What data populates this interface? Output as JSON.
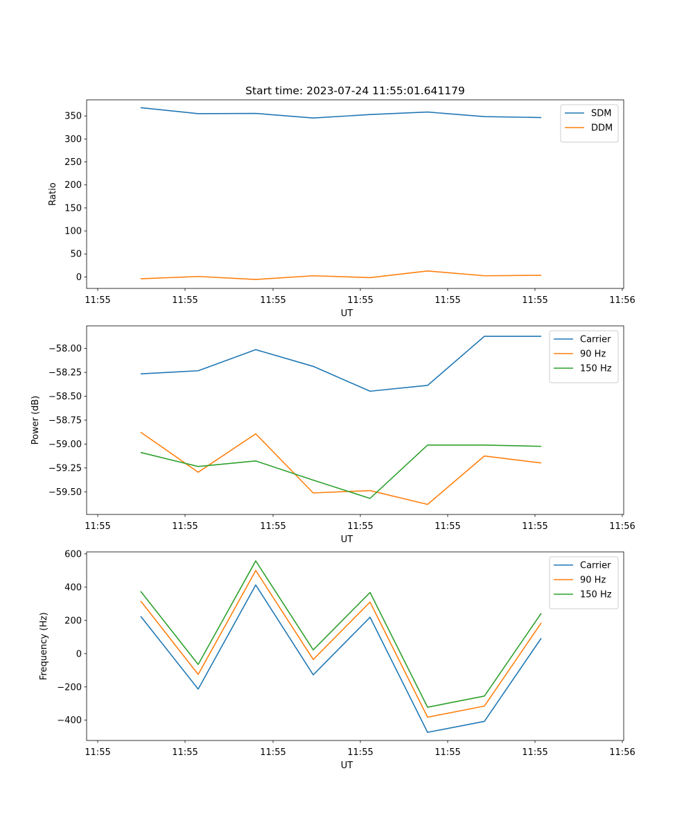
{
  "chart_data": [
    {
      "type": "line",
      "title": "Start time: 2023-07-24 11:55:01.641179",
      "xlabel": "UT",
      "ylabel": "Ratio",
      "x_tick_labels": [
        "11:55",
        "11:55",
        "11:55",
        "11:55",
        "11:55",
        "11:55",
        "11:55",
        "11:56"
      ],
      "y_ticks": [
        0,
        50,
        100,
        150,
        200,
        250,
        300,
        350
      ],
      "y_tick_labels": [
        "0",
        "50",
        "100",
        "150",
        "200",
        "250",
        "300",
        "350"
      ],
      "ylim": [
        -25,
        385
      ],
      "legend_position": "top-right",
      "series": [
        {
          "name": "SDM",
          "color": "#1f77b4",
          "values": [
            368,
            355,
            355.5,
            345.5,
            353,
            358.5,
            348.5,
            346.5
          ]
        },
        {
          "name": "DDM",
          "color": "#ff7f0e",
          "values": [
            -4,
            1,
            -5.5,
            2.5,
            -1.5,
            13,
            2.5,
            3.5
          ]
        }
      ]
    },
    {
      "type": "line",
      "title": "",
      "xlabel": "UT",
      "ylabel": "Power (dB)",
      "x_tick_labels": [
        "11:55",
        "11:55",
        "11:55",
        "11:55",
        "11:55",
        "11:55",
        "11:55",
        "11:56"
      ],
      "y_ticks": [
        -59.5,
        -59.25,
        -59.0,
        -58.75,
        -58.5,
        -58.25,
        -58.0
      ],
      "y_tick_labels": [
        "−59.50",
        "−59.25",
        "−59.00",
        "−58.75",
        "−58.50",
        "−58.25",
        "−58.00"
      ],
      "ylim": [
        -59.737,
        -57.763
      ],
      "legend_position": "top-right",
      "series": [
        {
          "name": "Carrier",
          "color": "#1f77b4",
          "values": [
            -58.265,
            -58.233,
            -58.012,
            -58.187,
            -58.447,
            -58.386,
            -57.872,
            -57.872
          ]
        },
        {
          "name": "90 Hz",
          "color": "#ff7f0e",
          "values": [
            -58.876,
            -59.295,
            -58.893,
            -59.512,
            -59.487,
            -59.632,
            -59.125,
            -59.198
          ]
        },
        {
          "name": "150 Hz",
          "color": "#2ca02c",
          "values": [
            -59.088,
            -59.235,
            -59.177,
            -59.378,
            -59.569,
            -59.011,
            -59.011,
            -59.024
          ]
        }
      ]
    },
    {
      "type": "line",
      "title": "",
      "xlabel": "UT",
      "ylabel": "Frequency (Hz)",
      "x_tick_labels": [
        "11:55",
        "11:55",
        "11:55",
        "11:55",
        "11:55",
        "11:55",
        "11:55",
        "11:56"
      ],
      "y_ticks": [
        -400,
        -200,
        0,
        200,
        400,
        600
      ],
      "y_tick_labels": [
        "−400",
        "−200",
        "0",
        "200",
        "400",
        "600"
      ],
      "ylim": [
        -522,
        612
      ],
      "legend_position": "top-right",
      "series": [
        {
          "name": "Carrier",
          "color": "#1f77b4",
          "values": [
            225,
            -213,
            413,
            -127,
            219,
            -473,
            -407,
            93
          ]
        },
        {
          "name": "90 Hz",
          "color": "#ff7f0e",
          "values": [
            317,
            -125,
            500,
            -35,
            310,
            -382,
            -315,
            185
          ]
        },
        {
          "name": "150 Hz",
          "color": "#2ca02c",
          "values": [
            375,
            -65,
            558,
            23,
            368,
            -322,
            -255,
            243
          ]
        }
      ]
    }
  ]
}
